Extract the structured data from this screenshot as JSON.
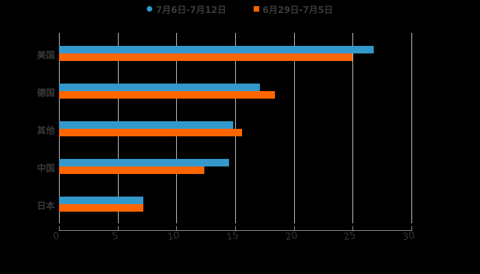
{
  "chart_data": {
    "type": "bar",
    "orientation": "horizontal",
    "title": "",
    "xlabel": "",
    "ylabel": "",
    "categories": [
      "美国",
      "德国",
      "其他",
      "中国",
      "日本"
    ],
    "series": [
      {
        "name": "7月6日-7月12日",
        "color": "#3399CC",
        "marker": "circle",
        "values": [
          26.8,
          17.1,
          14.8,
          14.5,
          7.2
        ]
      },
      {
        "name": "6月29日-7月5日",
        "color": "#FF6600",
        "marker": "square",
        "values": [
          25.0,
          18.4,
          15.6,
          12.4,
          7.2
        ]
      }
    ],
    "xlim": [
      0,
      30
    ],
    "x_ticks": [
      "0",
      "5",
      "10",
      "15",
      "20",
      "25",
      "30"
    ],
    "grid": "vertical",
    "legend_position": "top"
  },
  "legend": {
    "items": [
      {
        "label": "7月6日-7月12日",
        "color": "#3399CC"
      },
      {
        "label": "6月29日-7月5日",
        "color": "#FF6600"
      }
    ]
  }
}
